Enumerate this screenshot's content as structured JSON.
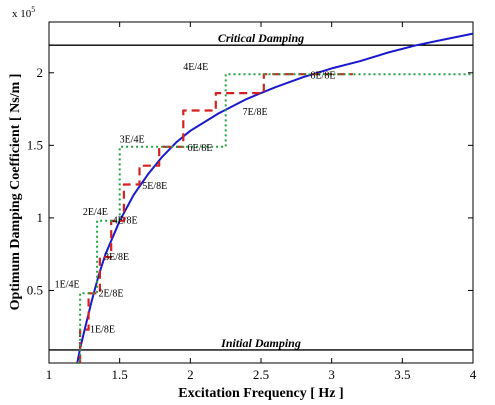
{
  "chart_data": {
    "type": "line",
    "title": "",
    "xlabel": "Excitation Frequency [ Hz ]",
    "ylabel": "Optimum Damping Coefficient [ Ns/m ]",
    "y_multiplier_label": "x 10",
    "y_multiplier_exponent": "5",
    "xlim": [
      1,
      4
    ],
    "ylim": [
      0,
      2.35
    ],
    "x_ticks": [
      1,
      1.5,
      2,
      2.5,
      3,
      3.5,
      4
    ],
    "x_tick_labels": [
      "1",
      "1.5",
      "2",
      "2.5",
      "3",
      "3.5",
      "4"
    ],
    "y_ticks": [
      0.5,
      1,
      1.5,
      2
    ],
    "y_tick_labels": [
      "0.5",
      "1",
      "1.5",
      "2"
    ],
    "grid": false,
    "reference_lines": [
      {
        "name": "Critical Damping",
        "y": 2.19,
        "color": "#000000"
      },
      {
        "name": "Initial Damping",
        "y": 0.09,
        "color": "#000000"
      }
    ],
    "series": [
      {
        "style": "solid",
        "color": "#1a1acc",
        "x": [
          1.2,
          1.22,
          1.25,
          1.3,
          1.35,
          1.4,
          1.5,
          1.6,
          1.7,
          1.8,
          1.9,
          2.0,
          2.2,
          2.4,
          2.6,
          2.8,
          3.0,
          3.2,
          3.4,
          3.6,
          3.8,
          4.0
        ],
        "y": [
          0.0,
          0.1,
          0.22,
          0.42,
          0.6,
          0.75,
          0.98,
          1.16,
          1.3,
          1.42,
          1.52,
          1.6,
          1.72,
          1.82,
          1.9,
          1.97,
          2.03,
          2.08,
          2.14,
          2.19,
          2.23,
          2.27
        ]
      },
      {
        "style": "dashed",
        "color": "#d42020",
        "x": [
          1.22,
          1.22,
          1.28,
          1.28,
          1.36,
          1.36,
          1.44,
          1.44,
          1.53,
          1.53,
          1.64,
          1.64,
          1.78,
          1.78,
          1.95,
          1.95,
          2.18,
          2.18,
          2.52,
          2.52,
          3.15
        ],
        "y": [
          0.0,
          0.23,
          0.23,
          0.48,
          0.48,
          0.73,
          0.73,
          0.98,
          0.98,
          1.23,
          1.23,
          1.36,
          1.36,
          1.49,
          1.49,
          1.74,
          1.74,
          1.86,
          1.86,
          1.99,
          1.99
        ]
      },
      {
        "style": "dotted",
        "color": "#20a040",
        "x": [
          1.2,
          1.22,
          1.22,
          1.34,
          1.34,
          1.5,
          1.5,
          1.74,
          1.74,
          2.25,
          2.25,
          4.0
        ],
        "y": [
          0.0,
          0.0,
          0.48,
          0.48,
          0.98,
          0.98,
          1.49,
          1.49,
          1.49,
          1.49,
          1.99,
          1.99
        ]
      }
    ],
    "annotations": [
      {
        "text": "1E/8E",
        "x": 1.29,
        "y": 0.21
      },
      {
        "text": "2E/8E",
        "x": 1.35,
        "y": 0.46
      },
      {
        "text": "3E/8E",
        "x": 1.39,
        "y": 0.71
      },
      {
        "text": "4E/8E",
        "x": 1.45,
        "y": 0.96
      },
      {
        "text": "5E/8E",
        "x": 1.66,
        "y": 1.2
      },
      {
        "text": "6E/8E",
        "x": 1.98,
        "y": 1.46
      },
      {
        "text": "7E/8E",
        "x": 2.37,
        "y": 1.71
      },
      {
        "text": "8E/8E",
        "x": 2.85,
        "y": 1.96
      },
      {
        "text": "1E/4E",
        "x": 1.04,
        "y": 0.52
      },
      {
        "text": "2E/4E",
        "x": 1.24,
        "y": 1.02
      },
      {
        "text": "3E/4E",
        "x": 1.5,
        "y": 1.52
      },
      {
        "text": "4E/4E",
        "x": 1.95,
        "y": 2.02
      }
    ]
  }
}
